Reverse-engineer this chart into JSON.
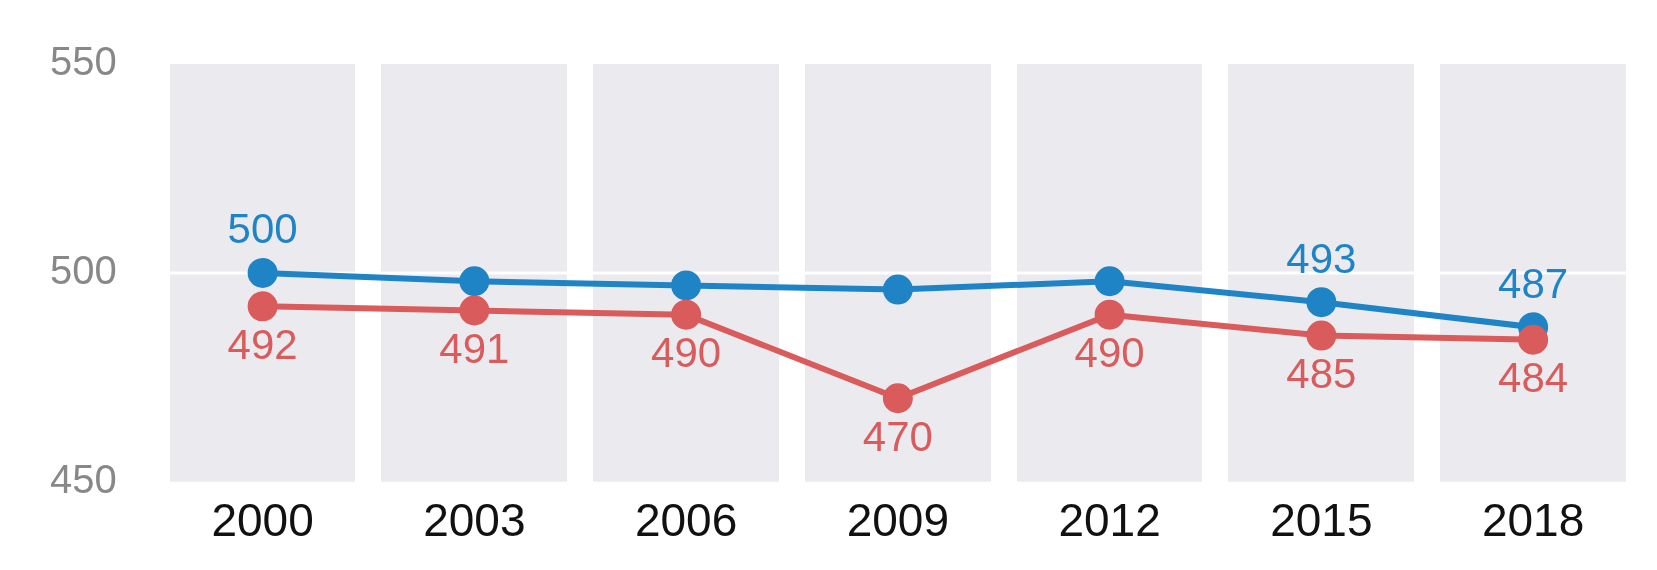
{
  "chart_data": {
    "type": "line",
    "categories": [
      "2000",
      "2003",
      "2006",
      "2009",
      "2012",
      "2015",
      "2018"
    ],
    "series": [
      {
        "color": "#1f84c6",
        "values": [
          500,
          498,
          497,
          496,
          498,
          493,
          487
        ],
        "value_labels": [
          "500",
          null,
          null,
          null,
          null,
          "493",
          "487"
        ]
      },
      {
        "color": "#d95b5b",
        "values": [
          492,
          491,
          490,
          470,
          490,
          485,
          484
        ],
        "value_labels": [
          "492",
          "491",
          "490",
          "470",
          "490",
          "485",
          "484"
        ]
      }
    ],
    "ylim": [
      450,
      550
    ],
    "yticks": [
      450,
      500,
      550
    ],
    "grid": "x",
    "ref_lines": [
      {
        "axis": "y",
        "value": 500,
        "color": "#ffffff"
      }
    ],
    "legend": false,
    "marker": "circle",
    "line_style": "solid"
  }
}
